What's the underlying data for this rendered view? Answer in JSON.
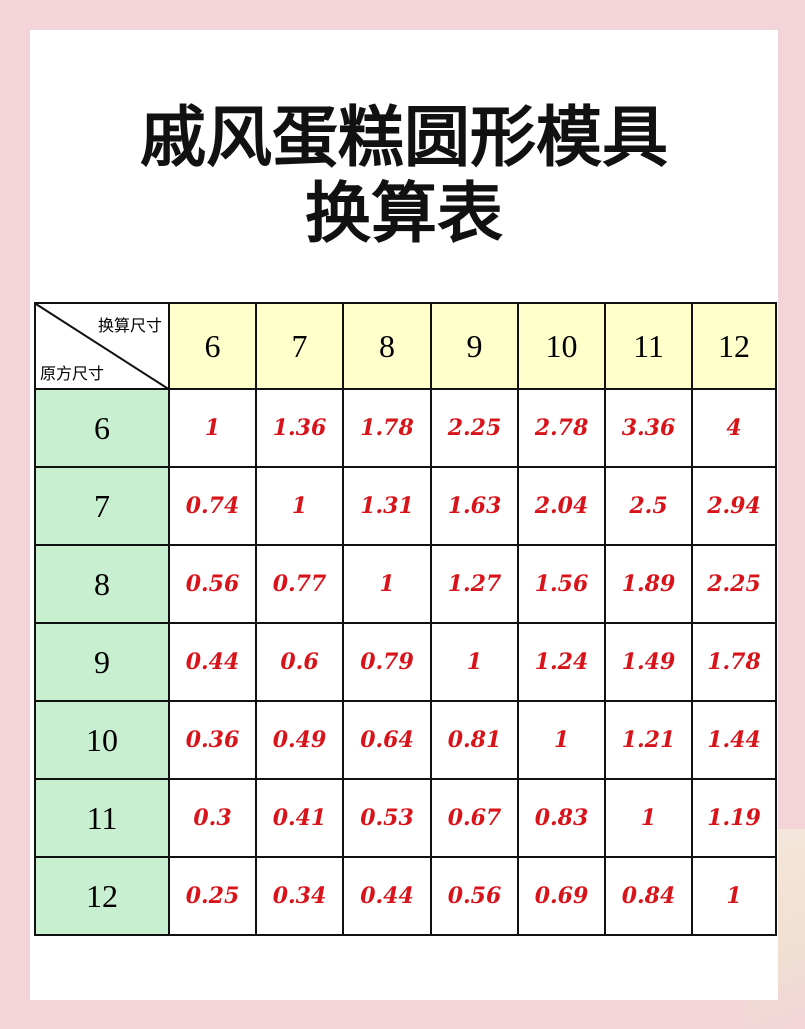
{
  "title_line1": "戚风蛋糕圆形模具",
  "title_line2": "换算表",
  "corner": {
    "top_label": "换算尺寸",
    "bottom_label": "原方尺寸"
  },
  "columns": [
    "6",
    "7",
    "8",
    "9",
    "10",
    "11",
    "12"
  ],
  "rows": [
    {
      "size": "6",
      "values": [
        "1",
        "1.36",
        "1.78",
        "2.25",
        "2.78",
        "3.36",
        "4"
      ]
    },
    {
      "size": "7",
      "values": [
        "0.74",
        "1",
        "1.31",
        "1.63",
        "2.04",
        "2.5",
        "2.94"
      ]
    },
    {
      "size": "8",
      "values": [
        "0.56",
        "0.77",
        "1",
        "1.27",
        "1.56",
        "1.89",
        "2.25"
      ]
    },
    {
      "size": "9",
      "values": [
        "0.44",
        "0.6",
        "0.79",
        "1",
        "1.24",
        "1.49",
        "1.78"
      ]
    },
    {
      "size": "10",
      "values": [
        "0.36",
        "0.49",
        "0.64",
        "0.81",
        "1",
        "1.21",
        "1.44"
      ]
    },
    {
      "size": "11",
      "values": [
        "0.3",
        "0.41",
        "0.53",
        "0.67",
        "0.83",
        "1",
        "1.19"
      ]
    },
    {
      "size": "12",
      "values": [
        "0.25",
        "0.34",
        "0.44",
        "0.56",
        "0.69",
        "0.84",
        "1"
      ]
    }
  ],
  "colors": {
    "background": "#f3d4d9",
    "header_bg": "#ffffcc",
    "row_header_bg": "#c8efd0",
    "value_text": "#d8131a"
  }
}
